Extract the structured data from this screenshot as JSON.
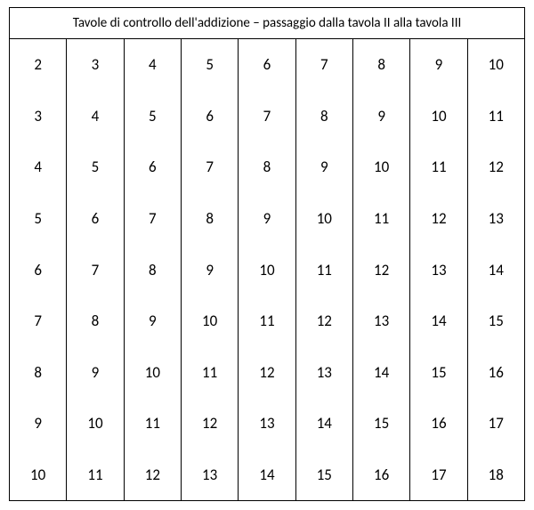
{
  "table": {
    "title": "Tavole di controllo dell'addizione – passaggio dalla tavola II alla tavola III",
    "type": "table",
    "columns": 9,
    "rows_per_column": 9,
    "border_color": "#000000",
    "background_color": "#ffffff",
    "text_color": "#000000",
    "title_fontsize": 15,
    "cell_fontsize": 17,
    "data": [
      [
        2,
        3,
        4,
        5,
        6,
        7,
        8,
        9,
        10
      ],
      [
        3,
        4,
        5,
        6,
        7,
        8,
        9,
        10,
        11
      ],
      [
        4,
        5,
        6,
        7,
        8,
        9,
        10,
        11,
        12
      ],
      [
        5,
        6,
        7,
        8,
        9,
        10,
        11,
        12,
        13
      ],
      [
        6,
        7,
        8,
        9,
        10,
        11,
        12,
        13,
        14
      ],
      [
        7,
        8,
        9,
        10,
        11,
        12,
        13,
        14,
        15
      ],
      [
        8,
        9,
        10,
        11,
        12,
        13,
        14,
        15,
        16
      ],
      [
        9,
        10,
        11,
        12,
        13,
        14,
        15,
        16,
        17
      ],
      [
        10,
        11,
        12,
        13,
        14,
        15,
        16,
        17,
        18
      ]
    ]
  }
}
